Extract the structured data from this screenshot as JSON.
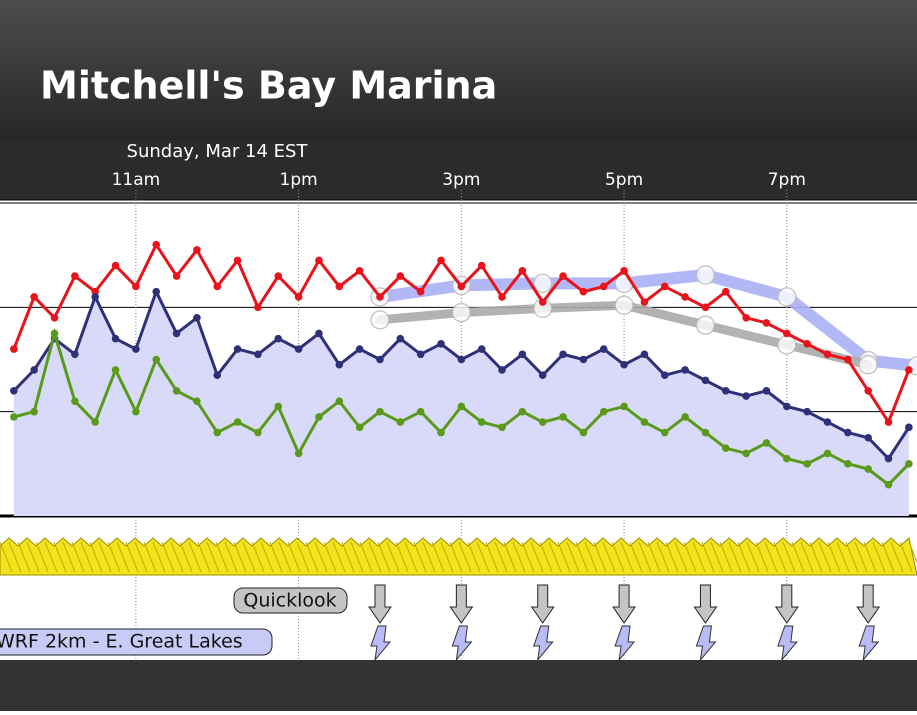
{
  "header": {
    "title": "Mitchell's Bay Marina",
    "date": "Sunday, Mar 14 EST"
  },
  "chart_data": {
    "type": "line",
    "xlim": [
      9.33,
      20.6
    ],
    "xticks": [
      {
        "value": 11,
        "label": "11am"
      },
      {
        "value": 13,
        "label": "1pm"
      },
      {
        "value": 15,
        "label": "3pm"
      },
      {
        "value": 17,
        "label": "5pm"
      },
      {
        "value": 19,
        "label": "7pm"
      }
    ],
    "ylim": [
      0,
      30
    ],
    "yticks": [
      0,
      10,
      20,
      30
    ],
    "grid": true,
    "x": [
      9.5,
      9.75,
      10,
      10.25,
      10.5,
      10.75,
      11,
      11.25,
      11.5,
      11.75,
      12,
      12.25,
      12.5,
      12.75,
      13,
      13.25,
      13.5,
      13.75,
      14,
      14.25,
      14.5,
      14.75,
      15,
      15.25,
      15.5,
      15.75,
      16,
      16.25,
      16.5,
      16.75,
      17,
      17.25,
      17.5,
      17.75,
      18,
      18.25,
      18.5,
      18.75,
      19,
      19.25,
      19.5,
      19.75,
      20,
      20.25,
      20.5
    ],
    "series": [
      {
        "color": "#e8131b",
        "values": [
          16,
          21,
          19,
          23,
          21.5,
          24,
          22,
          26,
          23,
          25.5,
          22,
          24.5,
          20,
          23,
          21,
          24.5,
          22,
          23.5,
          21,
          23,
          21.5,
          24.5,
          22,
          24,
          21,
          23.5,
          20.5,
          23,
          21.5,
          22,
          23.5,
          20.5,
          22,
          21,
          20,
          21.5,
          19,
          18.5,
          17.5,
          16.5,
          15.5,
          15,
          12,
          9,
          14
        ]
      },
      {
        "color": "#2e3178",
        "fill": "#d9dafa",
        "values": [
          12,
          14,
          17,
          15.5,
          21,
          17,
          16,
          21.5,
          17.5,
          19,
          13.5,
          16,
          15.5,
          17,
          16,
          17.5,
          14.5,
          16,
          15,
          17,
          15.5,
          16.5,
          15,
          16,
          14,
          15.5,
          13.5,
          15.5,
          15,
          16,
          14.5,
          15.5,
          13.5,
          14,
          13,
          12,
          11.5,
          12,
          10.5,
          10,
          9,
          8,
          7.5,
          5.5,
          8.5
        ]
      },
      {
        "color": "#5a9a1a",
        "values": [
          9.5,
          10,
          17.5,
          11,
          9,
          14,
          10,
          15,
          12,
          11,
          8,
          9,
          8,
          10.5,
          6,
          9.5,
          11,
          8.5,
          10,
          9,
          10,
          8,
          10.5,
          9,
          8.5,
          10,
          9,
          9.5,
          8,
          10,
          10.5,
          9,
          8,
          9.5,
          8,
          6.5,
          6,
          7,
          5.5,
          5,
          6,
          5,
          4.5,
          3,
          5
        ]
      }
    ],
    "forecast": [
      {
        "color": "#aab0f5",
        "x": [
          14,
          15,
          16,
          17,
          18,
          19,
          20,
          20.6
        ],
        "values": [
          21,
          22.1,
          22.3,
          22.3,
          23.1,
          21,
          14.9,
          14.4
        ]
      },
      {
        "color": "#aaaaaa",
        "x": [
          14,
          15,
          16,
          17,
          18,
          19,
          20
        ],
        "values": [
          18.8,
          19.5,
          19.9,
          20.2,
          18.3,
          16.4,
          14.5
        ]
      }
    ]
  },
  "buttons": {
    "quicklook": "Quicklook",
    "model": "WRF 2km - E. Great Lakes"
  }
}
